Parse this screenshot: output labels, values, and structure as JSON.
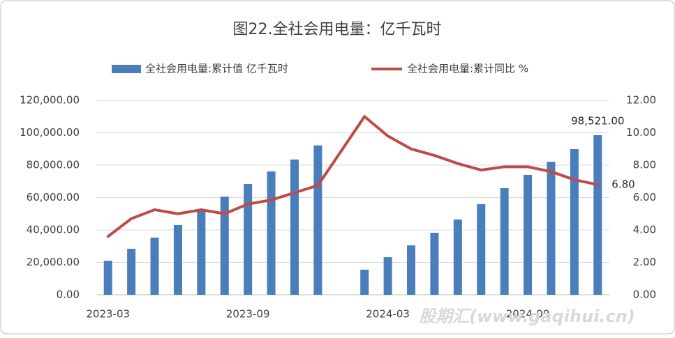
{
  "chart_data": {
    "type": "bar_line",
    "title": "图22.全社会用电量：亿千瓦时",
    "watermark": "股期汇(www.gaqihui.cn)",
    "categories": [
      "2023-03",
      null,
      null,
      null,
      null,
      null,
      "2023-09",
      null,
      null,
      null,
      null,
      null,
      "2024-03",
      null,
      null,
      null,
      null,
      null,
      "2024-09",
      null,
      null,
      null
    ],
    "series": [
      {
        "name": "全社会用电量:累计值 亿千瓦时",
        "type": "bar",
        "color": "#4a7ebb",
        "values": [
          21000,
          28400,
          35300,
          43000,
          52000,
          60600,
          68400,
          76100,
          83500,
          92200,
          null,
          15500,
          23200,
          30500,
          38300,
          46500,
          55900,
          65800,
          74000,
          82100,
          89900,
          98521
        ],
        "value_labels": [
          null,
          null,
          null,
          null,
          null,
          null,
          null,
          null,
          null,
          null,
          null,
          null,
          null,
          null,
          null,
          null,
          null,
          null,
          null,
          null,
          null,
          "98,521.00"
        ]
      },
      {
        "name": "全社会用电量:累计同比 %",
        "type": "line",
        "axis": "y2",
        "color": "#be4b48",
        "values": [
          3.6,
          4.7,
          5.25,
          5.0,
          5.25,
          5.0,
          5.6,
          5.85,
          6.3,
          6.75,
          null,
          11.0,
          9.8,
          9.0,
          8.6,
          8.1,
          7.7,
          7.9,
          7.9,
          7.6,
          7.1,
          6.8
        ],
        "value_labels": [
          null,
          null,
          null,
          null,
          null,
          null,
          null,
          null,
          null,
          null,
          null,
          null,
          null,
          null,
          null,
          null,
          null,
          null,
          null,
          null,
          null,
          "6.80"
        ]
      }
    ],
    "connect_gaps": true,
    "ylim": [
      0,
      120000
    ],
    "yticks": [
      {
        "value": 0,
        "label": "0.00"
      },
      {
        "value": 20000,
        "label": "20,000.00"
      },
      {
        "value": 40000,
        "label": "40,000.00"
      },
      {
        "value": 60000,
        "label": "60,000.00"
      },
      {
        "value": 80000,
        "label": "80,000.00"
      },
      {
        "value": 100000,
        "label": "100,000.00"
      },
      {
        "value": 120000,
        "label": "120,000.00"
      }
    ],
    "y2lim": [
      0,
      12
    ],
    "y2ticks": [
      {
        "value": 0,
        "label": "0.00"
      },
      {
        "value": 2,
        "label": "2.00"
      },
      {
        "value": 4,
        "label": "4.00"
      },
      {
        "value": 6,
        "label": "6.00"
      },
      {
        "value": 8,
        "label": "8.00"
      },
      {
        "value": 10,
        "label": "10.00"
      },
      {
        "value": 12,
        "label": "12.00"
      }
    ],
    "grid": true
  }
}
